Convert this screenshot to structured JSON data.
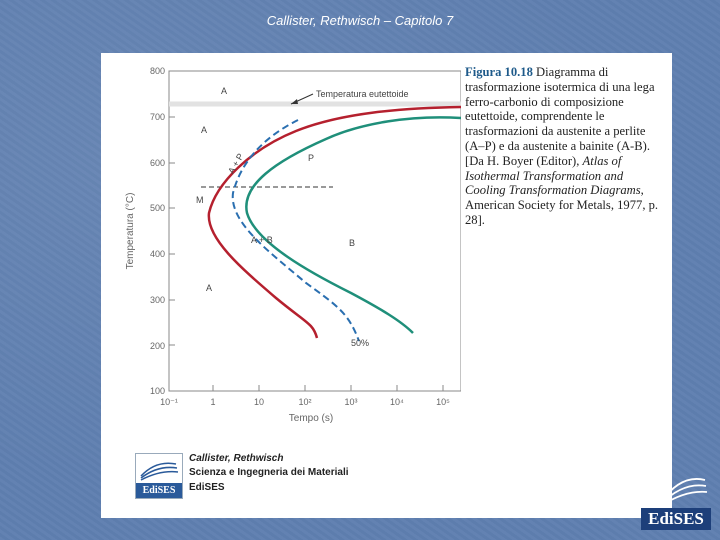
{
  "slide_title": "Callister, Rethwisch – Capitolo 7",
  "figure": {
    "label": "Figura 10.18",
    "caption_pre": "Diagramma di trasformazione isotermica di una lega ferro-carbonio di composizione eutettoide, comprendente le trasformazioni da austenite a perlite (A–P) e da austenite a bainite (A-B). [Da H. Boyer (Editor), ",
    "caption_italic": "Atlas of Isothermal Transformation and Cooling Transformation Diagrams",
    "caption_post": ", American Society for Metals, 1977, p. 28]."
  },
  "diagram": {
    "ylabel": "Temperatura (°C)",
    "xlabel": "Tempo (s)",
    "y_ticks": [
      "800",
      "700",
      "600",
      "500",
      "400",
      "300",
      "200",
      "100"
    ],
    "x_ticks": [
      "10⁻¹",
      "1",
      "10",
      "10²",
      "10³",
      "10⁴",
      "10⁵"
    ],
    "labels": {
      "a_top": "A",
      "eutectoid": "Temperatura eutettoide",
      "a_mid": "A",
      "a_plus_p": "A + P",
      "p": "P",
      "m": "M",
      "a_plus_b": "A + B",
      "b": "B",
      "a_low": "A",
      "fifty": "50%"
    },
    "colors": {
      "start_curve": "#b5202e",
      "mid_curve": "#2a6fb0",
      "end_curve": "#1f8f7a",
      "axis": "#777777"
    }
  },
  "footer": {
    "authors": "Callister, Rethwisch",
    "book": "Scienza e Ingegneria dei Materiali",
    "publisher": "EdiSES",
    "logo_text": "EdiSES"
  },
  "corner_logo_text": "EdiSES"
}
